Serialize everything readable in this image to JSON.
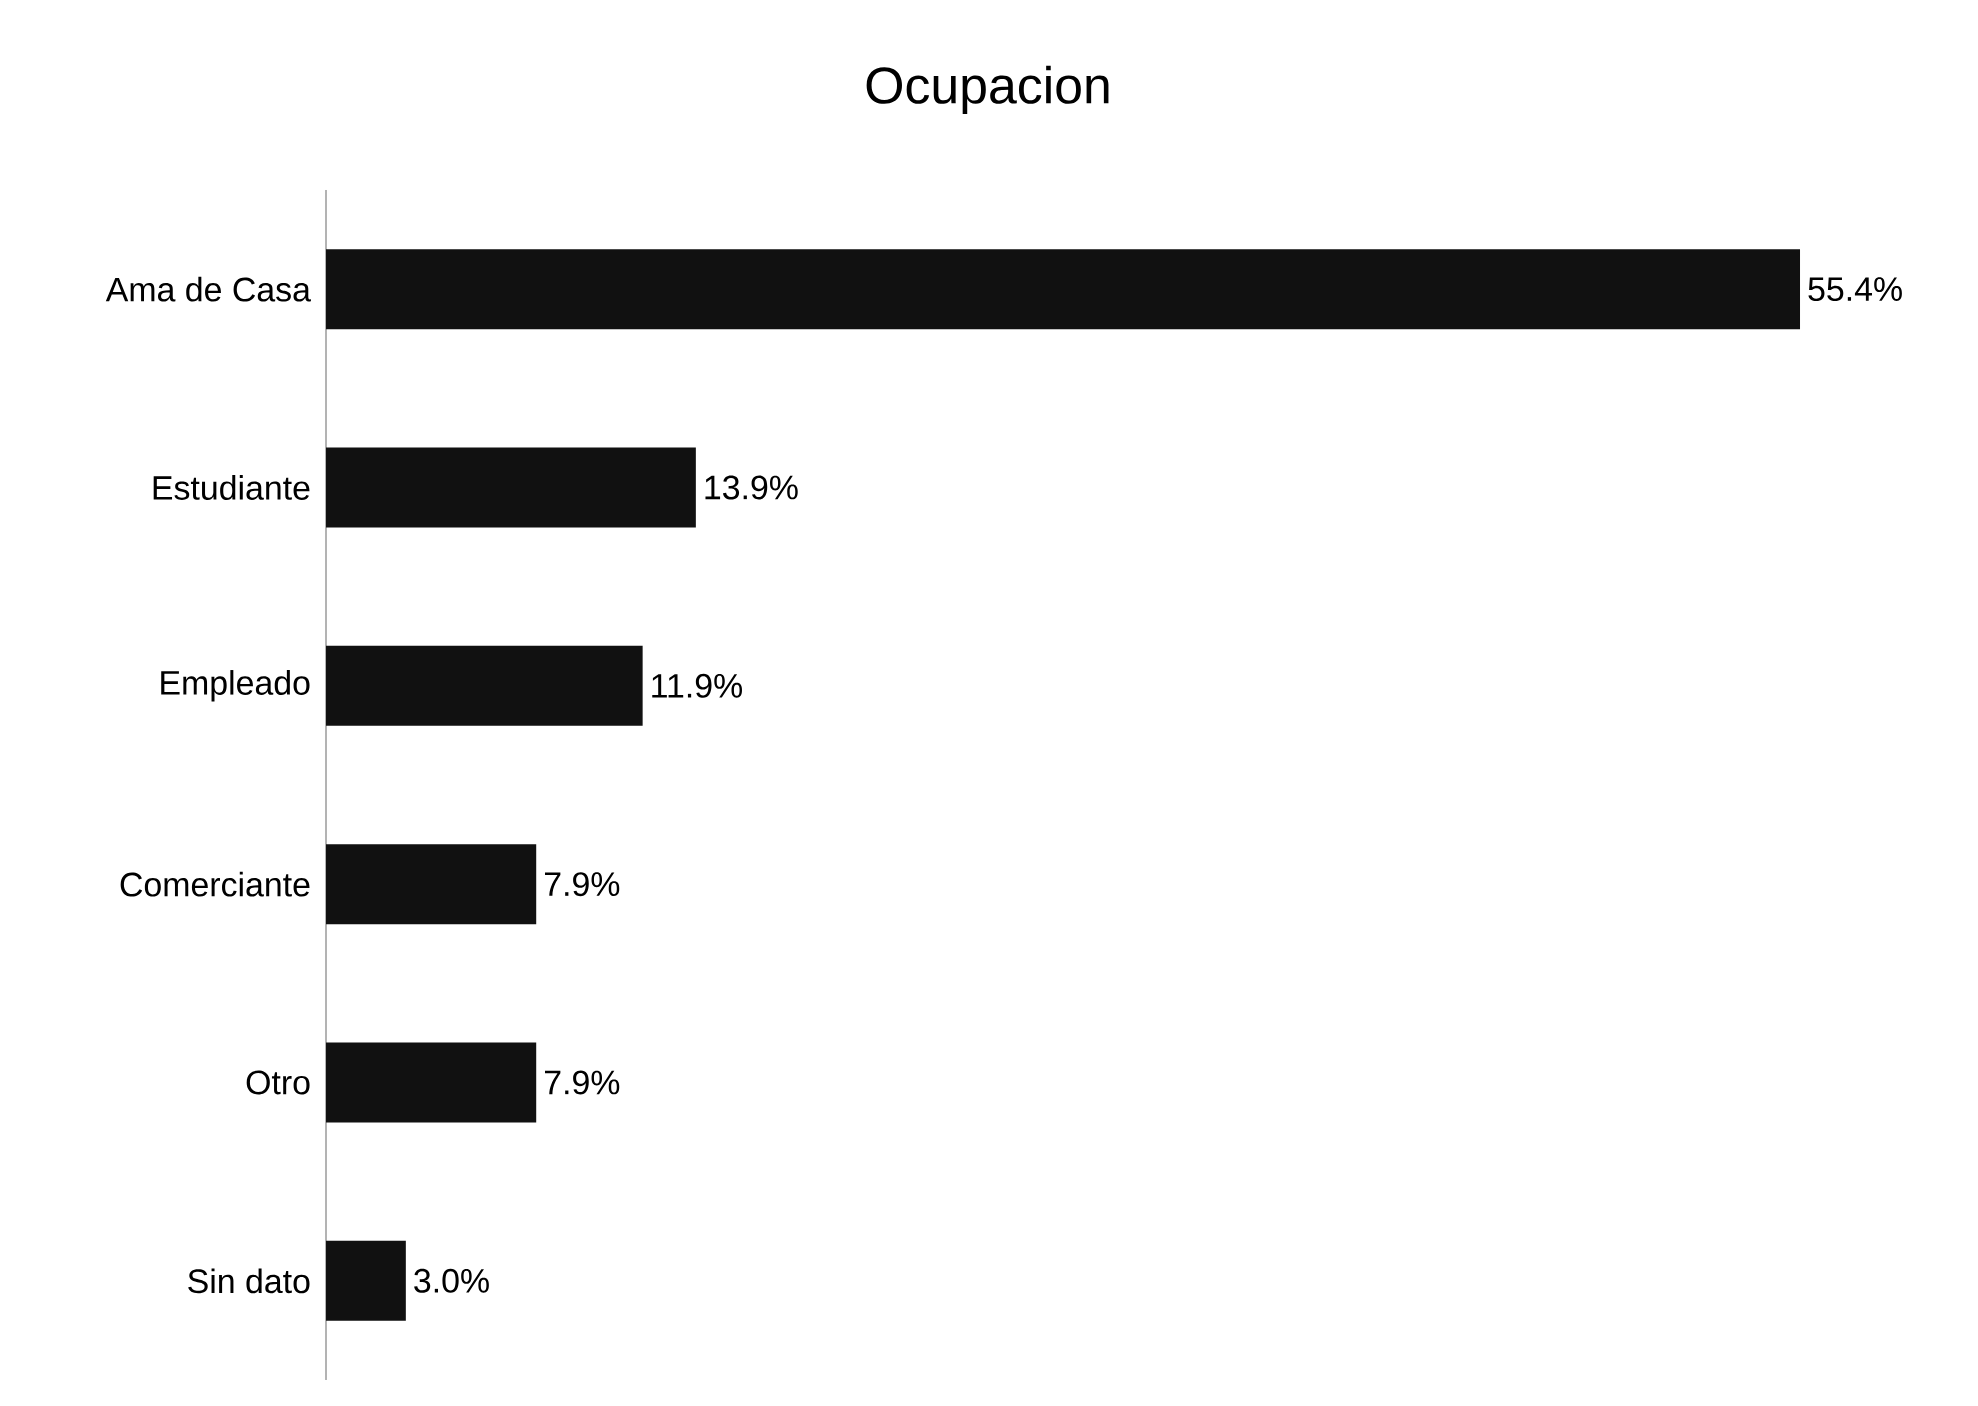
{
  "chart_data": {
    "type": "bar",
    "orientation": "horizontal",
    "title": "Ocupacion",
    "categories": [
      "Ama de Casa",
      "Estudiante",
      "Empleado",
      "Comerciante",
      "Otro",
      "Sin dato"
    ],
    "values": [
      55.4,
      13.9,
      11.9,
      7.9,
      7.9,
      3.0
    ],
    "value_labels": [
      "55.4%",
      "13.9%",
      "11.9%",
      "7.9%",
      "7.9%",
      "3.0%"
    ],
    "color": "#111111"
  }
}
